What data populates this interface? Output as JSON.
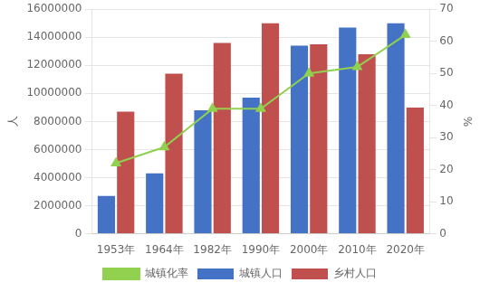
{
  "chart_data": {
    "type": "bar",
    "categories": [
      "1953年",
      "1964年",
      "1982年",
      "1990年",
      "2000年",
      "2010年",
      "2020年"
    ],
    "series": [
      {
        "name": "城镇人口",
        "type": "bar",
        "color": "#4472C4",
        "values": [
          2700000,
          4300000,
          8800000,
          9700000,
          13400000,
          14700000,
          15000000
        ]
      },
      {
        "name": "乡村人口",
        "type": "bar",
        "color": "#C0504D",
        "values": [
          8700000,
          11400000,
          13600000,
          15000000,
          13500000,
          12800000,
          9000000
        ]
      },
      {
        "name": "城镇化率",
        "type": "line",
        "axis": "y2",
        "color": "#92D050",
        "marker": "triangle",
        "values": [
          22,
          27,
          39,
          39,
          50,
          52,
          62
        ]
      }
    ],
    "ylabel": "人",
    "y2label": "%",
    "ylim": [
      0,
      16000000
    ],
    "yticks": [
      0,
      2000000,
      4000000,
      6000000,
      8000000,
      10000000,
      12000000,
      14000000,
      16000000
    ],
    "y2lim": [
      0,
      70
    ],
    "y2ticks": [
      0,
      10,
      20,
      30,
      40,
      50,
      60,
      70
    ],
    "grid": true,
    "legend": "bottom"
  }
}
